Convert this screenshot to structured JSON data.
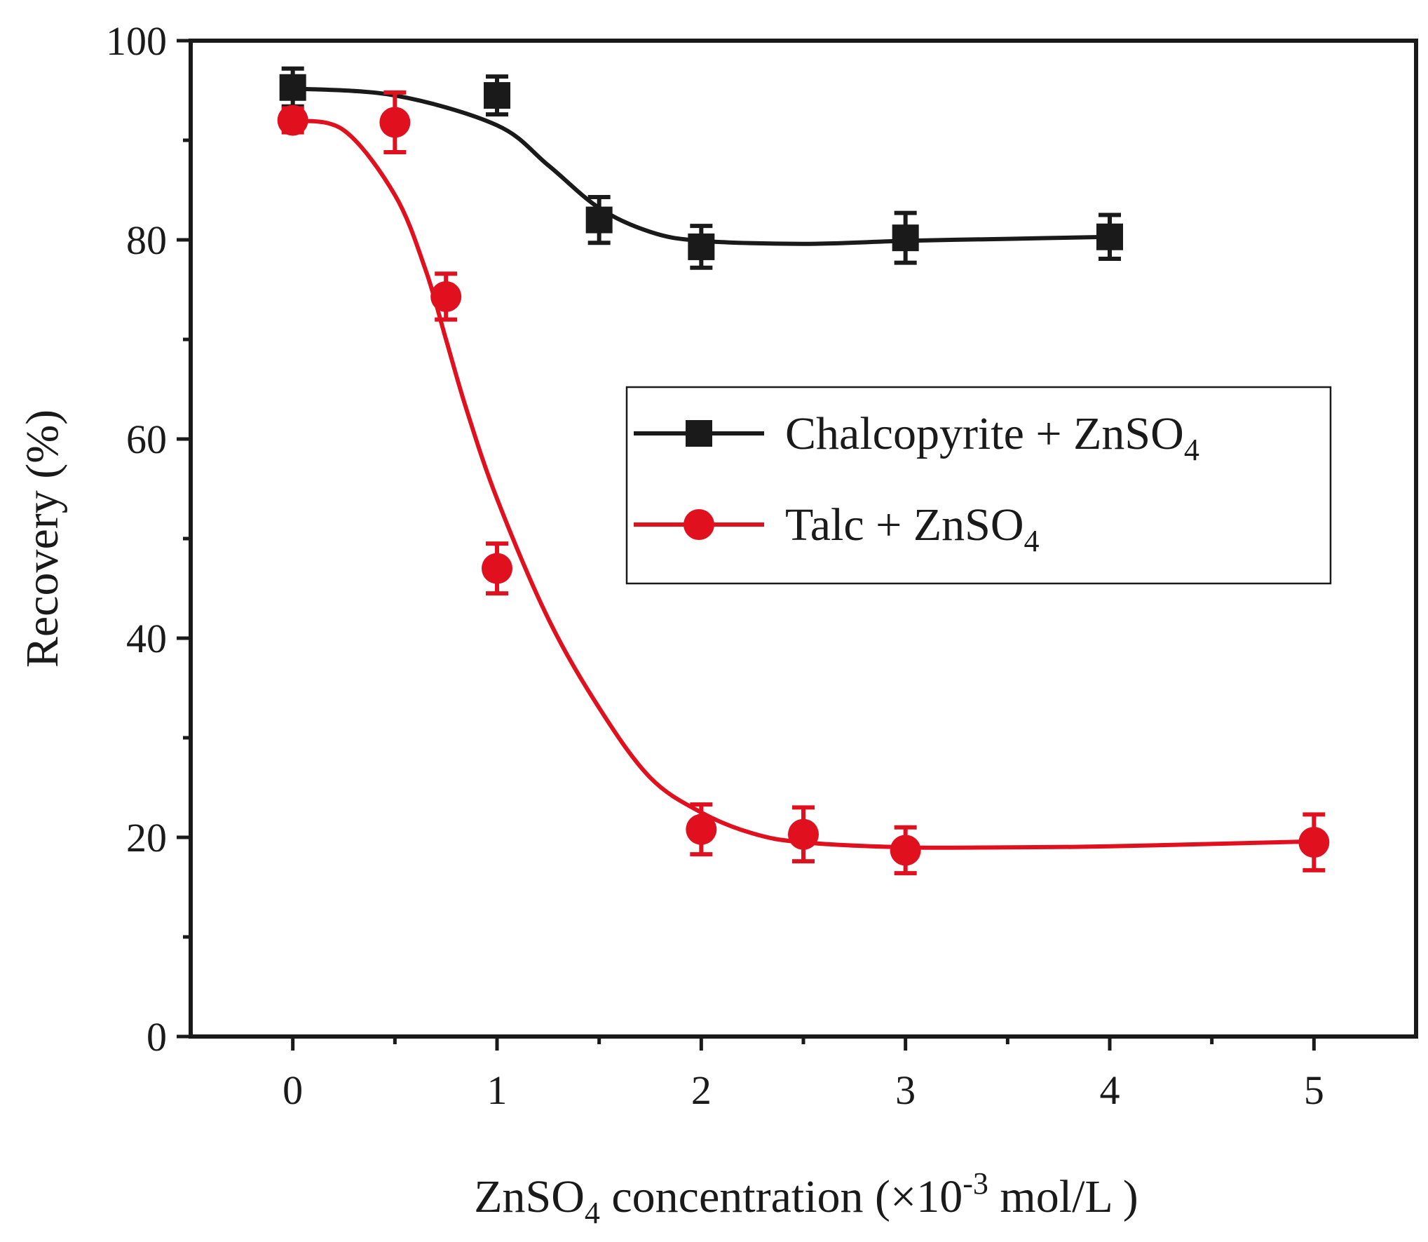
{
  "chart_data": {
    "type": "line",
    "title": "",
    "xlabel": {
      "prefix": "ZnSO",
      "sub": "4",
      "middle": " concentration (×10",
      "sup": "-3",
      "suffix": " mol/L )"
    },
    "ylabel": "Recovery (%)",
    "xlim": [
      -0.5,
      5.5
    ],
    "ylim": [
      0,
      100
    ],
    "x_ticks": [
      0,
      1,
      2,
      3,
      4,
      5
    ],
    "x_tick_labels": [
      "0",
      "1",
      "2",
      "3",
      "4",
      "5"
    ],
    "x_minor_ticks": [
      0.5,
      1.5,
      2.5,
      3.5,
      4.5
    ],
    "y_ticks": [
      0,
      20,
      40,
      60,
      80,
      100
    ],
    "y_tick_labels": [
      "0",
      "20",
      "40",
      "60",
      "80",
      "100"
    ],
    "y_minor_ticks": [
      10,
      30,
      50,
      70,
      90
    ],
    "legend_position": "center-right",
    "series": [
      {
        "name": "Chalcopyrite + ZnSO4",
        "label_prefix": "Chalcopyrite + ZnSO",
        "label_sub": "4",
        "color": "#1a1a1a",
        "marker": "square",
        "x": [
          0,
          1,
          1.5,
          2,
          3,
          4
        ],
        "y": [
          95.3,
          94.5,
          82,
          79.3,
          80.2,
          80.3
        ],
        "error": [
          1.9,
          1.9,
          2.3,
          2.1,
          2.5,
          2.2
        ],
        "fit_x": [
          0,
          0.5,
          1,
          1.25,
          1.5,
          1.75,
          2,
          2.5,
          3,
          3.5,
          4
        ],
        "fit_y": [
          95.2,
          94.5,
          91.5,
          87.5,
          83.2,
          80.8,
          79.9,
          79.6,
          79.9,
          80.1,
          80.3
        ]
      },
      {
        "name": "Talc + ZnSO4",
        "label_prefix": "Talc + ZnSO",
        "label_sub": "4",
        "color": "#e0101e",
        "marker": "circle",
        "x": [
          0,
          0.5,
          0.75,
          1,
          2,
          2.5,
          3,
          5
        ],
        "y": [
          92,
          91.8,
          74.3,
          47,
          20.8,
          20.3,
          18.7,
          19.5
        ],
        "error": [
          1.2,
          3.0,
          2.3,
          2.5,
          2.5,
          2.7,
          2.3,
          2.8
        ],
        "fit_x": [
          0,
          0.25,
          0.5,
          0.65,
          0.75,
          0.85,
          1,
          1.25,
          1.5,
          1.75,
          2,
          2.25,
          2.5,
          3,
          3.5,
          4,
          5
        ],
        "fit_y": [
          92,
          91,
          84.5,
          77,
          70,
          63,
          54,
          42,
          33,
          26,
          22.5,
          20.4,
          19.5,
          19,
          19,
          19.1,
          19.6
        ]
      }
    ]
  }
}
